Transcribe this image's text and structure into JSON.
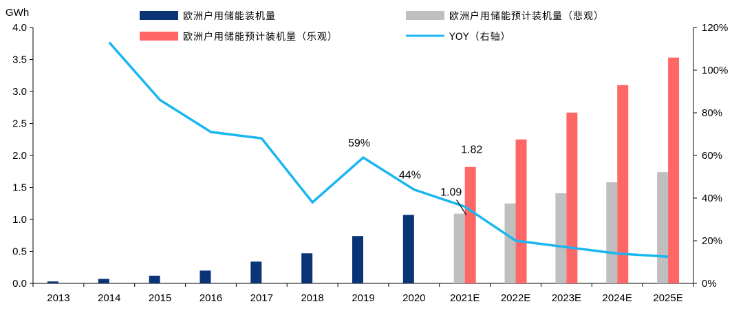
{
  "chart_data": {
    "type": "bar+line",
    "y_left_unit": "GWh",
    "y_left_ticks": [
      "0.0",
      "0.5",
      "1.0",
      "1.5",
      "2.0",
      "2.5",
      "3.0",
      "3.5",
      "4.0"
    ],
    "y_left_range": [
      0,
      4
    ],
    "y_right_ticks": [
      "0%",
      "20%",
      "40%",
      "60%",
      "80%",
      "100%",
      "120%"
    ],
    "y_right_range": [
      0,
      120
    ],
    "categories": [
      "2013",
      "2014",
      "2015",
      "2016",
      "2017",
      "2018",
      "2019",
      "2020",
      "2021E",
      "2022E",
      "2023E",
      "2024E",
      "2025E"
    ],
    "series": [
      {
        "name": "欧洲户用储能装机量",
        "type": "bar",
        "axis": "left",
        "color": "#0b3477",
        "values": [
          0.03,
          0.07,
          0.12,
          0.2,
          0.34,
          0.47,
          0.74,
          1.07,
          null,
          null,
          null,
          null,
          null
        ]
      },
      {
        "name": "欧洲户用储能预计装机量（悲观）",
        "type": "bar",
        "axis": "left",
        "color": "#bfbfbf",
        "values": [
          null,
          null,
          null,
          null,
          null,
          null,
          null,
          null,
          1.09,
          1.25,
          1.41,
          1.58,
          1.74
        ]
      },
      {
        "name": "欧洲户用储能预计装机量（乐观）",
        "type": "bar",
        "axis": "left",
        "color": "#ff6666",
        "values": [
          null,
          null,
          null,
          null,
          null,
          null,
          null,
          null,
          1.82,
          2.25,
          2.67,
          3.1,
          3.53
        ]
      },
      {
        "name": "YOY（右轴）",
        "type": "line",
        "axis": "right",
        "color": "#1ab6f0",
        "values": [
          null,
          113,
          86,
          71,
          68,
          38,
          59,
          44,
          36,
          20,
          17,
          14,
          12.5
        ]
      }
    ],
    "annotations": [
      {
        "text": "59%",
        "category": "2019",
        "series": "YOY（右轴）",
        "value": 59
      },
      {
        "text": "44%",
        "category": "2020",
        "series": "YOY（右轴）",
        "value": 44
      },
      {
        "text": "1.82",
        "category": "2021E",
        "series": "欧洲户用储能预计装机量（乐观）",
        "value": 1.82
      },
      {
        "text": "1.09",
        "category": "2021E",
        "series": "欧洲户用储能预计装机量（悲观）",
        "value": 1.09
      }
    ],
    "legend_position": "top"
  }
}
